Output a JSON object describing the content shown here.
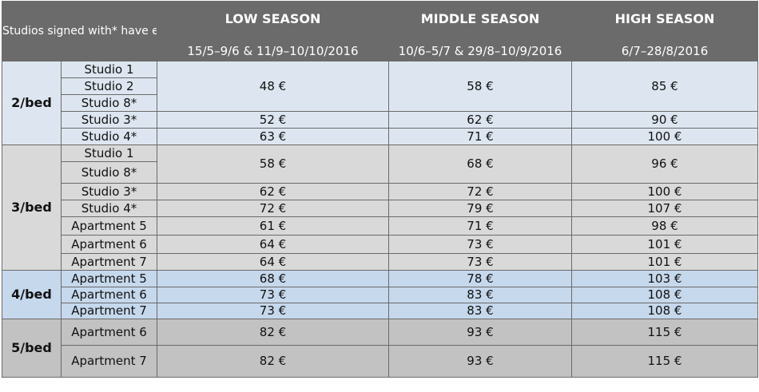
{
  "header": {
    "note": "Studios signed with* have extra facilities",
    "seasons": [
      {
        "name": "LOW SEASON",
        "dates": "15/5–9/6 & 11/9–10/10/2016"
      },
      {
        "name": "MIDDLE SEASON",
        "dates": "10/6–5/7 & 29/8–10/9/2016"
      },
      {
        "name": "HIGH SEASON",
        "dates": "6/7–28/8/2016"
      }
    ]
  },
  "groups": [
    {
      "bed": "2/bed",
      "rows": [
        {
          "units": [
            "Studio 1",
            "Studio 2",
            "Studio 8*"
          ],
          "low": "48 €",
          "middle": "58 €",
          "high": "85 €"
        },
        {
          "units": [
            "Studio 3*"
          ],
          "low": "52 €",
          "middle": "62 €",
          "high": "90 €"
        },
        {
          "units": [
            "Studio 4*"
          ],
          "low": "63 €",
          "middle": "71 €",
          "high": "100 €"
        }
      ]
    },
    {
      "bed": "3/bed",
      "rows": [
        {
          "units": [
            "Studio 1",
            "Studio 8*"
          ],
          "low": "58 €",
          "middle": "68 €",
          "high": "96 €"
        },
        {
          "units": [
            "Studio 3*"
          ],
          "low": "62 €",
          "middle": "72 €",
          "high": "100 €"
        },
        {
          "units": [
            "Studio 4*"
          ],
          "low": "72 €",
          "middle": "79 €",
          "high": "107 €"
        },
        {
          "units": [
            "Apartment 5"
          ],
          "low": "61 €",
          "middle": "71 €",
          "high": "98 €"
        },
        {
          "units": [
            "Apartment 6"
          ],
          "low": "64 €",
          "middle": "73 €",
          "high": "101 €"
        },
        {
          "units": [
            "Apartment 7"
          ],
          "low": "64 €",
          "middle": "73 €",
          "high": "101 €"
        }
      ]
    },
    {
      "bed": "4/bed",
      "rows": [
        {
          "units": [
            "Apartment 5"
          ],
          "low": "68 €",
          "middle": "78 €",
          "high": "103 €"
        },
        {
          "units": [
            "Apartment 6"
          ],
          "low": "73 €",
          "middle": "83 €",
          "high": "108 €"
        },
        {
          "units": [
            "Apartment 7"
          ],
          "low": "73 €",
          "middle": "83 €",
          "high": "108 €"
        }
      ]
    },
    {
      "bed": "5/bed",
      "rows": [
        {
          "units": [
            "Apartment 6"
          ],
          "low": "82 €",
          "middle": "93 €",
          "high": "115 €"
        },
        {
          "units": [
            "Apartment 7"
          ],
          "low": "82 €",
          "middle": "93 €",
          "high": "115 €"
        }
      ]
    }
  ]
}
